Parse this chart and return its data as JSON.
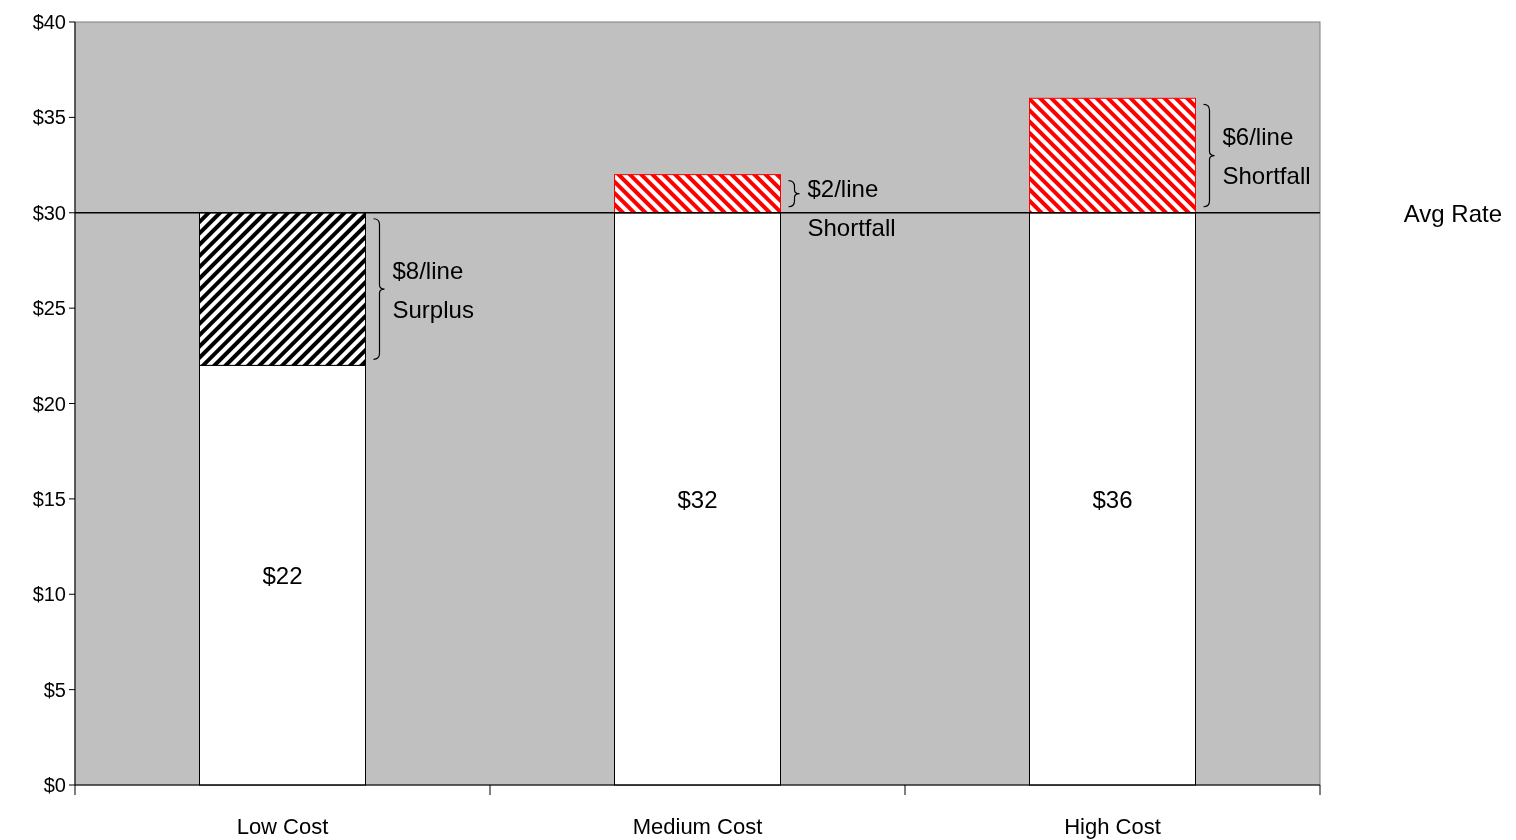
{
  "chart_data": {
    "type": "bar",
    "stacked": true,
    "categories": [
      "Low Cost",
      "Medium Cost",
      "High Cost"
    ],
    "series": [
      {
        "color": "#ffffff",
        "values": [
          22,
          30,
          30
        ]
      },
      {
        "colors": [
          "#000000",
          "#ff0000",
          "#ff0000"
        ],
        "values": [
          8,
          2,
          6
        ]
      }
    ],
    "ylim": [
      0,
      40
    ],
    "yticks": [
      {
        "value": 0,
        "label": "$0"
      },
      {
        "value": 5,
        "label": "$5"
      },
      {
        "value": 10,
        "label": "$10"
      },
      {
        "value": 15,
        "label": "$15"
      },
      {
        "value": 20,
        "label": "$20"
      },
      {
        "value": 25,
        "label": "$25"
      },
      {
        "value": 30,
        "label": "$30"
      },
      {
        "value": 35,
        "label": "$35"
      },
      {
        "value": 40,
        "label": "$40"
      }
    ],
    "grid": false,
    "ref_lines": [
      {
        "axis": "y",
        "value": 30,
        "label": "Avg Rate",
        "color": "#000000"
      }
    ],
    "annotations": [
      "$22",
      "$32",
      "$36",
      "$8/line\nSurplus",
      "$2/line\nShortfall",
      "$6/line\nShortfall"
    ]
  }
}
